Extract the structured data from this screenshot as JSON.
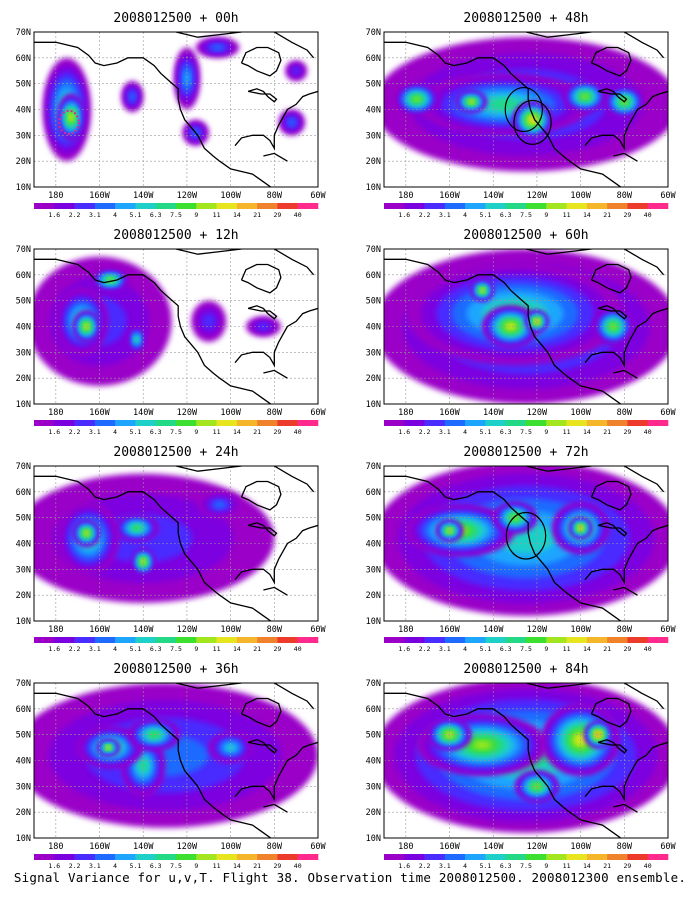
{
  "figure": {
    "caption": "Signal Variance for u,v,T. Flight 38. Observation time 2008012500. 2008012300 ensemble."
  },
  "colors": {
    "scale": [
      "#9a00c8",
      "#7b00e0",
      "#4a2cff",
      "#1f6bff",
      "#1ea6ff",
      "#1fd0c8",
      "#23d985",
      "#3de030",
      "#a3e61f",
      "#e6e51e",
      "#f6b62b",
      "#f0822b",
      "#ec3b2b",
      "#ff2a8c"
    ],
    "coast": "#000000",
    "grid": "#999999",
    "observation_marker": "#e0239a"
  },
  "chart_data": [
    {
      "type": "heatmap",
      "title": "2008012500 + 00h",
      "xlabel": "",
      "ylabel": "",
      "x_ticks": [
        "180",
        "160W",
        "140W",
        "120W",
        "100W",
        "80W",
        "60W"
      ],
      "y_ticks": [
        "10N",
        "20N",
        "30N",
        "40N",
        "50N",
        "60N",
        "70N"
      ],
      "xlim": [
        -190,
        -60
      ],
      "ylim": [
        10,
        70
      ],
      "grid": true,
      "colorbar_labels": [
        "1.6",
        "2.2",
        "3.1",
        "4",
        "5.1",
        "6.3",
        "7.5",
        "9",
        "11",
        "14",
        "21",
        "29",
        "40"
      ],
      "blobs": [
        {
          "lon": -175,
          "lat": 40,
          "rx": 11,
          "ry": 20,
          "level": 6
        },
        {
          "lon": -173,
          "lat": 37,
          "rx": 6,
          "ry": 9,
          "level": 9
        },
        {
          "lon": -145,
          "lat": 45,
          "rx": 5,
          "ry": 6,
          "level": 3
        },
        {
          "lon": -120,
          "lat": 52,
          "rx": 6,
          "ry": 12,
          "level": 4
        },
        {
          "lon": -106,
          "lat": 64,
          "rx": 10,
          "ry": 4,
          "level": 3
        },
        {
          "lon": -116,
          "lat": 31,
          "rx": 6,
          "ry": 5,
          "level": 3
        },
        {
          "lon": -72,
          "lat": 35,
          "rx": 6,
          "ry": 5,
          "level": 3
        },
        {
          "lon": -70,
          "lat": 55,
          "rx": 5,
          "ry": 4,
          "level": 2
        }
      ],
      "circles": [],
      "markers": [
        {
          "lon": -174,
          "lat": 35,
          "r": 4.5
        }
      ]
    },
    {
      "type": "heatmap",
      "title": "2008012500 + 48h",
      "xlabel": "",
      "ylabel": "",
      "x_ticks": [
        "180",
        "160W",
        "140W",
        "120W",
        "100W",
        "80W",
        "60W"
      ],
      "y_ticks": [
        "10N",
        "20N",
        "30N",
        "40N",
        "50N",
        "60N",
        "70N"
      ],
      "xlim": [
        -190,
        -60
      ],
      "ylim": [
        10,
        70
      ],
      "grid": true,
      "colorbar_labels": [
        "1.6",
        "2.2",
        "3.1",
        "4",
        "5.1",
        "6.3",
        "7.5",
        "9",
        "11",
        "14",
        "21",
        "29",
        "40"
      ],
      "blobs": [
        {
          "lon": -125,
          "lat": 42,
          "rx": 70,
          "ry": 26,
          "level": 3
        },
        {
          "lon": -135,
          "lat": 42,
          "rx": 40,
          "ry": 12,
          "level": 6
        },
        {
          "lon": -122,
          "lat": 36,
          "rx": 9,
          "ry": 7,
          "level": 10
        },
        {
          "lon": -150,
          "lat": 43,
          "rx": 7,
          "ry": 4,
          "level": 9
        },
        {
          "lon": -98,
          "lat": 45,
          "rx": 10,
          "ry": 6,
          "level": 8
        },
        {
          "lon": -80,
          "lat": 43,
          "rx": 9,
          "ry": 6,
          "level": 8
        },
        {
          "lon": -175,
          "lat": 44,
          "rx": 10,
          "ry": 6,
          "level": 8
        }
      ],
      "circles": [
        {
          "lon": -126,
          "lat": 40,
          "r": 8.5
        },
        {
          "lon": -122,
          "lat": 35,
          "r": 8.5
        }
      ],
      "markers": []
    },
    {
      "type": "heatmap",
      "title": "2008012500 + 12h",
      "xlabel": "",
      "ylabel": "",
      "x_ticks": [
        "180",
        "160W",
        "140W",
        "120W",
        "100W",
        "80W",
        "60W"
      ],
      "y_ticks": [
        "10N",
        "20N",
        "30N",
        "40N",
        "50N",
        "60N",
        "70N"
      ],
      "xlim": [
        -190,
        -60
      ],
      "ylim": [
        10,
        70
      ],
      "grid": true,
      "colorbar_labels": [
        "1.6",
        "2.2",
        "3.1",
        "4",
        "5.1",
        "6.3",
        "7.5",
        "9",
        "11",
        "14",
        "21",
        "29",
        "40"
      ],
      "blobs": [
        {
          "lon": -160,
          "lat": 42,
          "rx": 33,
          "ry": 25,
          "level": 2
        },
        {
          "lon": -168,
          "lat": 42,
          "rx": 12,
          "ry": 13,
          "level": 6
        },
        {
          "lon": -166,
          "lat": 40,
          "rx": 6,
          "ry": 6,
          "level": 9
        },
        {
          "lon": -155,
          "lat": 58,
          "rx": 8,
          "ry": 4,
          "level": 8
        },
        {
          "lon": -143,
          "lat": 35,
          "rx": 4,
          "ry": 5,
          "level": 6
        },
        {
          "lon": -110,
          "lat": 42,
          "rx": 8,
          "ry": 8,
          "level": 2
        },
        {
          "lon": -85,
          "lat": 40,
          "rx": 8,
          "ry": 4,
          "level": 2
        }
      ],
      "circles": [],
      "markers": []
    },
    {
      "type": "heatmap",
      "title": "2008012500 + 60h",
      "xlabel": "",
      "ylabel": "",
      "x_ticks": [
        "180",
        "160W",
        "140W",
        "120W",
        "100W",
        "80W",
        "60W"
      ],
      "y_ticks": [
        "10N",
        "20N",
        "30N",
        "40N",
        "50N",
        "60N",
        "70N"
      ],
      "xlim": [
        -190,
        -60
      ],
      "ylim": [
        10,
        70
      ],
      "grid": true,
      "colorbar_labels": [
        "1.6",
        "2.2",
        "3.1",
        "4",
        "5.1",
        "6.3",
        "7.5",
        "9",
        "11",
        "14",
        "21",
        "29",
        "40"
      ],
      "blobs": [
        {
          "lon": -125,
          "lat": 40,
          "rx": 70,
          "ry": 30,
          "level": 4
        },
        {
          "lon": -130,
          "lat": 45,
          "rx": 50,
          "ry": 20,
          "level": 6
        },
        {
          "lon": -132,
          "lat": 40,
          "rx": 13,
          "ry": 8,
          "level": 9
        },
        {
          "lon": -120,
          "lat": 42,
          "rx": 5,
          "ry": 4,
          "level": 10
        },
        {
          "lon": -145,
          "lat": 54,
          "rx": 5,
          "ry": 4,
          "level": 9
        },
        {
          "lon": -85,
          "lat": 40,
          "rx": 9,
          "ry": 7,
          "level": 8
        }
      ],
      "circles": [],
      "markers": []
    },
    {
      "type": "heatmap",
      "title": "2008012500 + 24h",
      "xlabel": "",
      "ylabel": "",
      "x_ticks": [
        "180",
        "160W",
        "140W",
        "120W",
        "100W",
        "80W",
        "60W"
      ],
      "y_ticks": [
        "10N",
        "20N",
        "30N",
        "40N",
        "50N",
        "60N",
        "70N"
      ],
      "xlim": [
        -190,
        -60
      ],
      "ylim": [
        10,
        70
      ],
      "grid": true,
      "colorbar_labels": [
        "1.6",
        "2.2",
        "3.1",
        "4",
        "5.1",
        "6.3",
        "7.5",
        "9",
        "11",
        "14",
        "21",
        "29",
        "40"
      ],
      "blobs": [
        {
          "lon": -140,
          "lat": 42,
          "rx": 60,
          "ry": 25,
          "level": 2
        },
        {
          "lon": -165,
          "lat": 42,
          "rx": 14,
          "ry": 14,
          "level": 6
        },
        {
          "lon": -166,
          "lat": 44,
          "rx": 6,
          "ry": 5,
          "level": 9
        },
        {
          "lon": -143,
          "lat": 46,
          "rx": 10,
          "ry": 5,
          "level": 7
        },
        {
          "lon": -140,
          "lat": 33,
          "rx": 5,
          "ry": 5,
          "level": 9
        },
        {
          "lon": -105,
          "lat": 55,
          "rx": 10,
          "ry": 5,
          "level": 3
        }
      ],
      "circles": [],
      "markers": []
    },
    {
      "type": "heatmap",
      "title": "2008012500 + 72h",
      "xlabel": "",
      "ylabel": "",
      "x_ticks": [
        "180",
        "160W",
        "140W",
        "120W",
        "100W",
        "80W",
        "60W"
      ],
      "y_ticks": [
        "10N",
        "20N",
        "30N",
        "40N",
        "50N",
        "60N",
        "70N"
      ],
      "xlim": [
        -190,
        -60
      ],
      "ylim": [
        10,
        70
      ],
      "grid": true,
      "colorbar_labels": [
        "1.6",
        "2.2",
        "3.1",
        "4",
        "5.1",
        "6.3",
        "7.5",
        "9",
        "11",
        "14",
        "21",
        "29",
        "40"
      ],
      "blobs": [
        {
          "lon": -125,
          "lat": 42,
          "rx": 70,
          "ry": 30,
          "level": 5
        },
        {
          "lon": -155,
          "lat": 45,
          "rx": 25,
          "ry": 10,
          "level": 8
        },
        {
          "lon": -160,
          "lat": 45,
          "rx": 6,
          "ry": 4,
          "level": 9
        },
        {
          "lon": -100,
          "lat": 46,
          "rx": 13,
          "ry": 10,
          "level": 8
        },
        {
          "lon": -100,
          "lat": 46,
          "rx": 5,
          "ry": 4,
          "level": 10
        },
        {
          "lon": -130,
          "lat": 50,
          "rx": 10,
          "ry": 6,
          "level": 8
        }
      ],
      "circles": [
        {
          "lon": -125,
          "lat": 43,
          "r": 9
        }
      ],
      "markers": []
    },
    {
      "type": "heatmap",
      "title": "2008012500 + 36h",
      "xlabel": "",
      "ylabel": "",
      "x_ticks": [
        "180",
        "160W",
        "140W",
        "120W",
        "100W",
        "80W",
        "60W"
      ],
      "y_ticks": [
        "10N",
        "20N",
        "30N",
        "40N",
        "50N",
        "60N",
        "70N"
      ],
      "xlim": [
        -190,
        -60
      ],
      "ylim": [
        10,
        70
      ],
      "grid": true,
      "colorbar_labels": [
        "1.6",
        "2.2",
        "3.1",
        "4",
        "5.1",
        "6.3",
        "7.5",
        "9",
        "11",
        "14",
        "21",
        "29",
        "40"
      ],
      "blobs": [
        {
          "lon": -130,
          "lat": 42,
          "rx": 70,
          "ry": 28,
          "level": 3
        },
        {
          "lon": -155,
          "lat": 45,
          "rx": 15,
          "ry": 8,
          "level": 7
        },
        {
          "lon": -156,
          "lat": 45,
          "rx": 5,
          "ry": 3,
          "level": 9
        },
        {
          "lon": -140,
          "lat": 38,
          "rx": 10,
          "ry": 12,
          "level": 6
        },
        {
          "lon": -135,
          "lat": 50,
          "rx": 12,
          "ry": 6,
          "level": 7
        },
        {
          "lon": -100,
          "lat": 45,
          "rx": 10,
          "ry": 6,
          "level": 5
        }
      ],
      "circles": [],
      "markers": []
    },
    {
      "type": "heatmap",
      "title": "2008012500 + 84h",
      "xlabel": "",
      "ylabel": "",
      "x_ticks": [
        "180",
        "160W",
        "140W",
        "120W",
        "100W",
        "80W",
        "60W"
      ],
      "y_ticks": [
        "10N",
        "20N",
        "30N",
        "40N",
        "50N",
        "60N",
        "70N"
      ],
      "xlim": [
        -190,
        -60
      ],
      "ylim": [
        10,
        70
      ],
      "grid": true,
      "colorbar_labels": [
        "1.6",
        "2.2",
        "3.1",
        "4",
        "5.1",
        "6.3",
        "7.5",
        "9",
        "11",
        "14",
        "21",
        "29",
        "40"
      ],
      "blobs": [
        {
          "lon": -125,
          "lat": 42,
          "rx": 70,
          "ry": 30,
          "level": 6
        },
        {
          "lon": -145,
          "lat": 46,
          "rx": 30,
          "ry": 12,
          "level": 8
        },
        {
          "lon": -160,
          "lat": 50,
          "rx": 10,
          "ry": 6,
          "level": 9
        },
        {
          "lon": -100,
          "lat": 48,
          "rx": 18,
          "ry": 14,
          "level": 9
        },
        {
          "lon": -92,
          "lat": 50,
          "rx": 6,
          "ry": 5,
          "level": 11
        },
        {
          "lon": -120,
          "lat": 30,
          "rx": 10,
          "ry": 6,
          "level": 8
        }
      ],
      "circles": [],
      "markers": []
    }
  ]
}
